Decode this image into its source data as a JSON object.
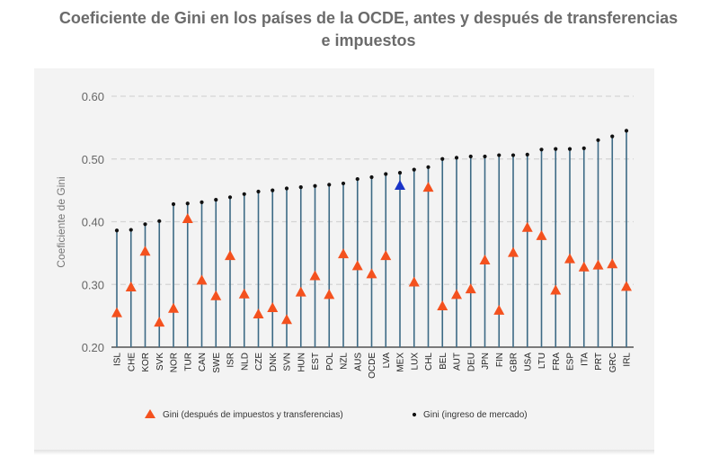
{
  "title": "Coeficiente de Gini en los países de la OCDE, antes y después de transferencias e impuestos",
  "colors": {
    "after_marker": "#f4511e",
    "highlight_marker": "#1a33c8",
    "stem": "#3d6a85",
    "market_dot": "#111111",
    "grid": "#d4d4d4",
    "panel": "#f3f3f3"
  },
  "chart_data": {
    "type": "dot-stem",
    "title": "Coeficiente de Gini en los países de la OCDE, antes y después de transferencias e impuestos",
    "xlabel": "",
    "ylabel": "Coeficiente de Gini",
    "ylim": [
      0.2,
      0.6
    ],
    "yticks": [
      "0.20",
      "0.30",
      "0.40",
      "0.50",
      "0.60"
    ],
    "grid": true,
    "legend_position": "bottom",
    "highlight": "MEX",
    "categories": [
      "ISL",
      "CHE",
      "KOR",
      "SVK",
      "NOR",
      "TUR",
      "CAN",
      "SWE",
      "ISR",
      "NLD",
      "CZE",
      "DNK",
      "SVN",
      "HUN",
      "EST",
      "POL",
      "NZL",
      "AUS",
      "OCDE",
      "LVA",
      "MEX",
      "LUX",
      "CHL",
      "BEL",
      "AUT",
      "DEU",
      "JPN",
      "FIN",
      "GBR",
      "USA",
      "LTU",
      "FRA",
      "ESP",
      "ITA",
      "PRT",
      "GRC",
      "IRL"
    ],
    "series": [
      {
        "name": "Gini (después de impuestos y transferencias)",
        "marker": "triangle",
        "values": [
          0.255,
          0.296,
          0.353,
          0.24,
          0.262,
          0.405,
          0.307,
          0.282,
          0.346,
          0.285,
          0.253,
          0.263,
          0.244,
          0.288,
          0.314,
          0.284,
          0.349,
          0.33,
          0.317,
          0.346,
          0.458,
          0.304,
          0.455,
          0.266,
          0.284,
          0.293,
          0.339,
          0.259,
          0.351,
          0.391,
          0.378,
          0.291,
          0.341,
          0.328,
          0.331,
          0.333,
          0.297
        ]
      },
      {
        "name": "Gini (ingreso de mercado)",
        "marker": "dot",
        "values": [
          0.386,
          0.387,
          0.396,
          0.401,
          0.428,
          0.429,
          0.431,
          0.435,
          0.439,
          0.444,
          0.448,
          0.45,
          0.453,
          0.455,
          0.457,
          0.459,
          0.461,
          0.468,
          0.471,
          0.476,
          0.478,
          0.483,
          0.487,
          0.5,
          0.502,
          0.504,
          0.504,
          0.506,
          0.506,
          0.507,
          0.515,
          0.516,
          0.516,
          0.517,
          0.53,
          0.536,
          0.545
        ]
      }
    ]
  }
}
